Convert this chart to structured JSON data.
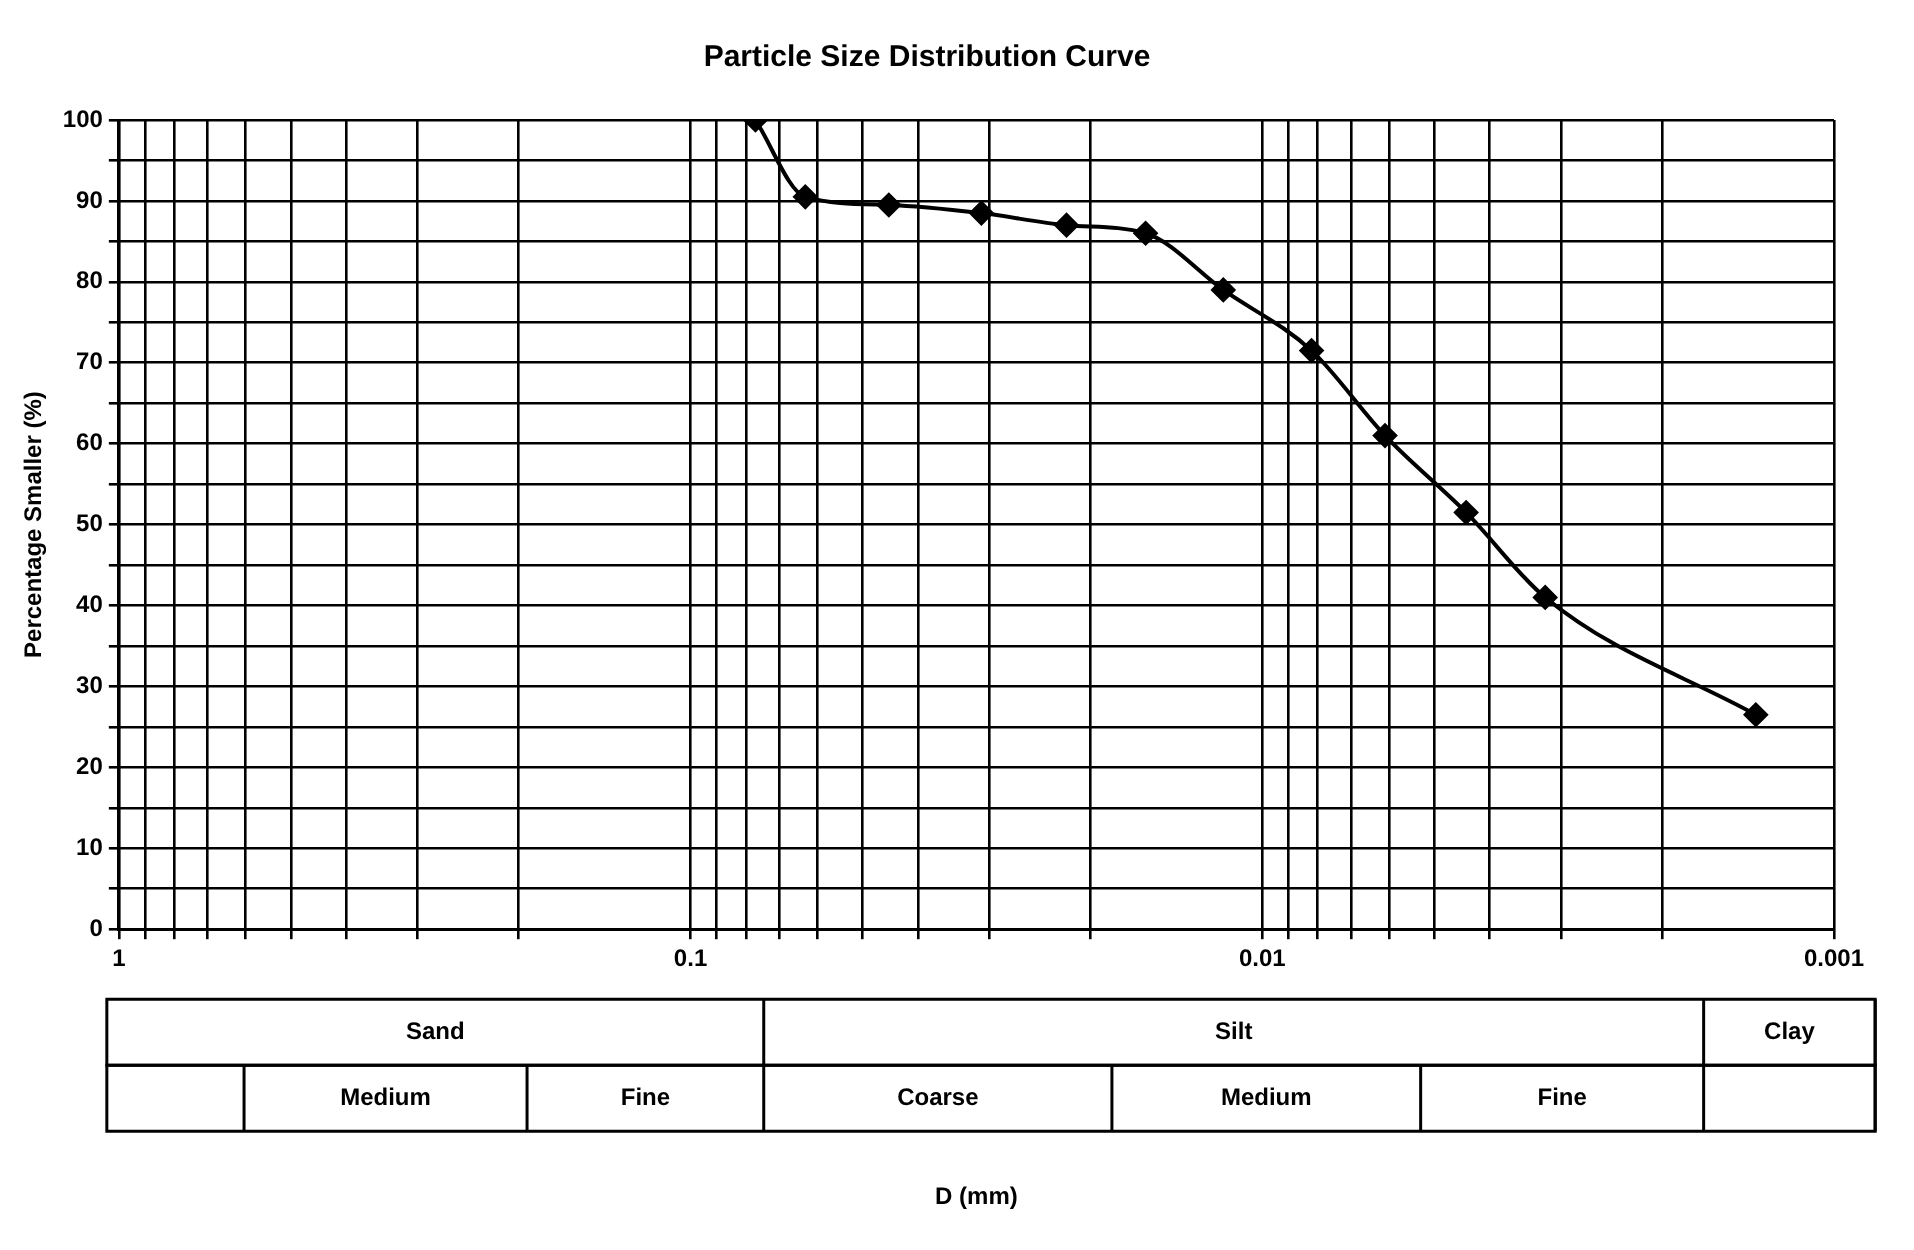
{
  "chart_data": {
    "type": "line",
    "title": "Particle Size Distribution Curve",
    "ylabel": "Percentage Smaller (%)",
    "log": "x",
    "grid": true,
    "legend": false,
    "marker": "diamond",
    "line_style": "solid",
    "xlim": [
      1,
      0.001
    ],
    "xticks": [
      1,
      {
        "value": 0.9,
        "label": null
      },
      {
        "value": 0.8,
        "label": null
      },
      {
        "value": 0.7,
        "label": null
      },
      {
        "value": 0.6,
        "label": null
      },
      {
        "value": 0.5,
        "label": null
      },
      {
        "value": 0.4,
        "label": null
      },
      {
        "value": 0.3,
        "label": null
      },
      {
        "value": 0.2,
        "label": null
      },
      0.1,
      {
        "value": 0.09,
        "label": null
      },
      {
        "value": 0.08,
        "label": null
      },
      {
        "value": 0.07,
        "label": null
      },
      {
        "value": 0.06,
        "label": null
      },
      {
        "value": 0.05,
        "label": null
      },
      {
        "value": 0.04,
        "label": null
      },
      {
        "value": 0.03,
        "label": null
      },
      {
        "value": 0.02,
        "label": null
      },
      0.01,
      {
        "value": 0.009,
        "label": null
      },
      {
        "value": 0.008,
        "label": null
      },
      {
        "value": 0.007,
        "label": null
      },
      {
        "value": 0.006,
        "label": null
      },
      {
        "value": 0.005,
        "label": null
      },
      {
        "value": 0.004,
        "label": null
      },
      {
        "value": 0.003,
        "label": null
      },
      {
        "value": 0.002,
        "label": null
      },
      0.001
    ],
    "ylim": [
      0,
      100
    ],
    "yticks": [
      0,
      {
        "value": 5,
        "label": null
      },
      10,
      {
        "value": 15,
        "label": null
      },
      20,
      {
        "value": 25,
        "label": null
      },
      30,
      {
        "value": 35,
        "label": null
      },
      40,
      {
        "value": 45,
        "label": null
      },
      50,
      {
        "value": 55,
        "label": null
      },
      60,
      {
        "value": 65,
        "label": null
      },
      70,
      {
        "value": 75,
        "label": null
      },
      80,
      {
        "value": 85,
        "label": null
      },
      90,
      {
        "value": 95,
        "label": null
      },
      100
    ],
    "annotations": [
      "Sand",
      "Silt",
      "Clay",
      "Medium",
      "Fine",
      "Coarse",
      "Medium",
      "Fine",
      "D (mm)"
    ],
    "series": [
      {
        "color": "#000000",
        "x": [
          0.077,
          0.063,
          0.045,
          0.031,
          0.022,
          0.016,
          0.0117,
          0.0082,
          0.0061,
          0.0044,
          0.0032,
          0.00137
        ],
        "values": [
          100,
          90.5,
          89.5,
          88.5,
          87,
          86,
          79,
          71.5,
          61,
          51.5,
          41,
          26.5
        ]
      }
    ]
  }
}
